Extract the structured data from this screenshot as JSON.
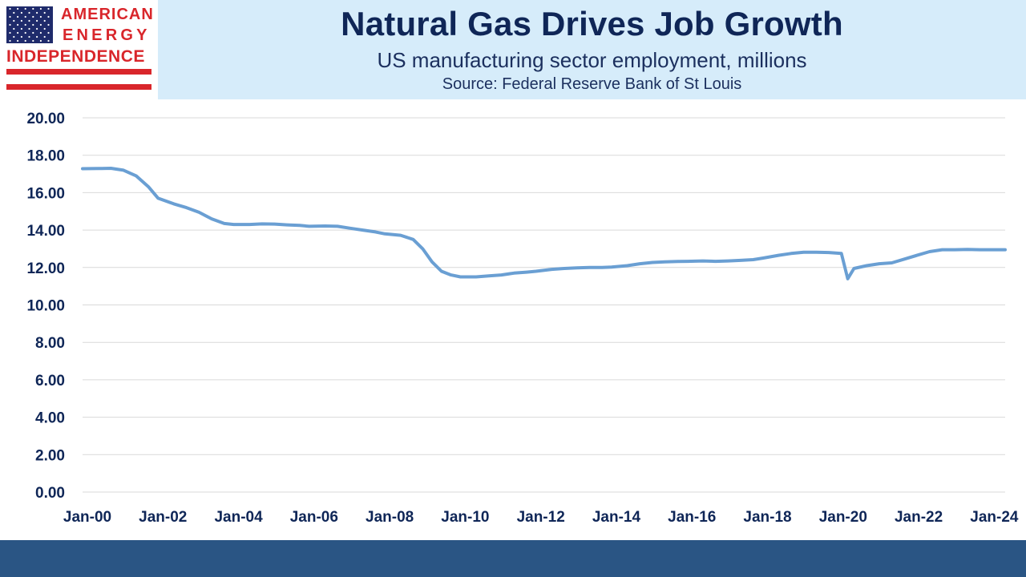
{
  "logo": {
    "line1": "AMERICAN",
    "line2": "ENERGY",
    "line3": "INDEPENDENCE",
    "icon": "us-flag-icon",
    "colors": {
      "red": "#d9262b",
      "blue": "#1f2b6b"
    }
  },
  "header": {
    "title": "Natural Gas Drives Job Growth",
    "subtitle": "US manufacturing sector employment, millions",
    "source": "Source: Federal Reserve Bank of St Louis"
  },
  "colors": {
    "line": "#6a9fd3",
    "grid": "#d9d9d9",
    "text": "#0f2657",
    "header_bg": "#d6ecfa",
    "footer_bg": "#2a5584"
  },
  "chart_data": {
    "type": "line",
    "title": "Natural Gas Drives Job Growth",
    "subtitle": "US manufacturing sector employment, millions",
    "xlabel": "",
    "ylabel": "",
    "ylim": [
      0,
      20
    ],
    "yticks": [
      0,
      2,
      4,
      6,
      8,
      10,
      12,
      14,
      16,
      18,
      20
    ],
    "ytick_labels": [
      "0.00",
      "2.00",
      "4.00",
      "6.00",
      "8.00",
      "10.00",
      "12.00",
      "14.00",
      "16.00",
      "18.00",
      "20.00"
    ],
    "xlim": [
      "2000-01",
      "2024-06"
    ],
    "xticks": [
      "2000-01",
      "2002-01",
      "2004-01",
      "2006-01",
      "2008-01",
      "2010-01",
      "2012-01",
      "2014-01",
      "2016-01",
      "2018-01",
      "2020-01",
      "2022-01",
      "2024-01"
    ],
    "xtick_labels": [
      "Jan-00",
      "Jan-02",
      "Jan-04",
      "Jan-06",
      "Jan-08",
      "Jan-10",
      "Jan-12",
      "Jan-14",
      "Jan-16",
      "Jan-18",
      "Jan-20",
      "Jan-22",
      "Jan-24"
    ],
    "grid": true,
    "legend": "none",
    "series": [
      {
        "x": [
          "2000-01",
          "2000-06",
          "2000-10",
          "2001-02",
          "2001-06",
          "2001-10",
          "2002-01",
          "2002-06",
          "2002-10",
          "2003-02",
          "2003-06",
          "2003-10",
          "2004-01",
          "2004-06",
          "2004-10",
          "2005-02",
          "2005-06",
          "2005-10",
          "2006-01",
          "2006-06",
          "2006-10",
          "2007-02",
          "2007-06",
          "2007-10",
          "2008-01",
          "2008-06",
          "2008-10",
          "2009-01",
          "2009-04",
          "2009-07",
          "2009-10",
          "2010-01",
          "2010-06",
          "2010-10",
          "2011-02",
          "2011-06",
          "2011-10",
          "2012-01",
          "2012-06",
          "2012-10",
          "2013-02",
          "2013-06",
          "2013-10",
          "2014-01",
          "2014-06",
          "2014-10",
          "2015-02",
          "2015-06",
          "2015-10",
          "2016-01",
          "2016-06",
          "2016-10",
          "2017-02",
          "2017-06",
          "2017-10",
          "2018-01",
          "2018-06",
          "2018-10",
          "2019-02",
          "2019-06",
          "2019-10",
          "2020-02",
          "2020-04",
          "2020-06",
          "2020-10",
          "2021-02",
          "2021-06",
          "2021-10",
          "2022-02",
          "2022-06",
          "2022-10",
          "2023-02",
          "2023-06",
          "2023-10",
          "2024-02",
          "2024-06"
        ],
        "values": [
          17.28,
          17.29,
          17.3,
          17.2,
          16.9,
          16.3,
          15.7,
          15.4,
          15.2,
          14.95,
          14.6,
          14.35,
          14.3,
          14.3,
          14.33,
          14.32,
          14.28,
          14.25,
          14.2,
          14.22,
          14.2,
          14.1,
          14.0,
          13.9,
          13.8,
          13.72,
          13.5,
          13.0,
          12.3,
          11.8,
          11.6,
          11.5,
          11.5,
          11.55,
          11.6,
          11.7,
          11.75,
          11.8,
          11.9,
          11.95,
          11.98,
          12.0,
          12.0,
          12.02,
          12.1,
          12.2,
          12.27,
          12.3,
          12.32,
          12.33,
          12.35,
          12.33,
          12.35,
          12.38,
          12.42,
          12.5,
          12.65,
          12.75,
          12.82,
          12.82,
          12.8,
          12.75,
          11.4,
          11.95,
          12.1,
          12.2,
          12.25,
          12.45,
          12.65,
          12.85,
          12.95,
          12.95,
          12.97,
          12.95,
          12.95,
          12.95
        ]
      }
    ]
  }
}
